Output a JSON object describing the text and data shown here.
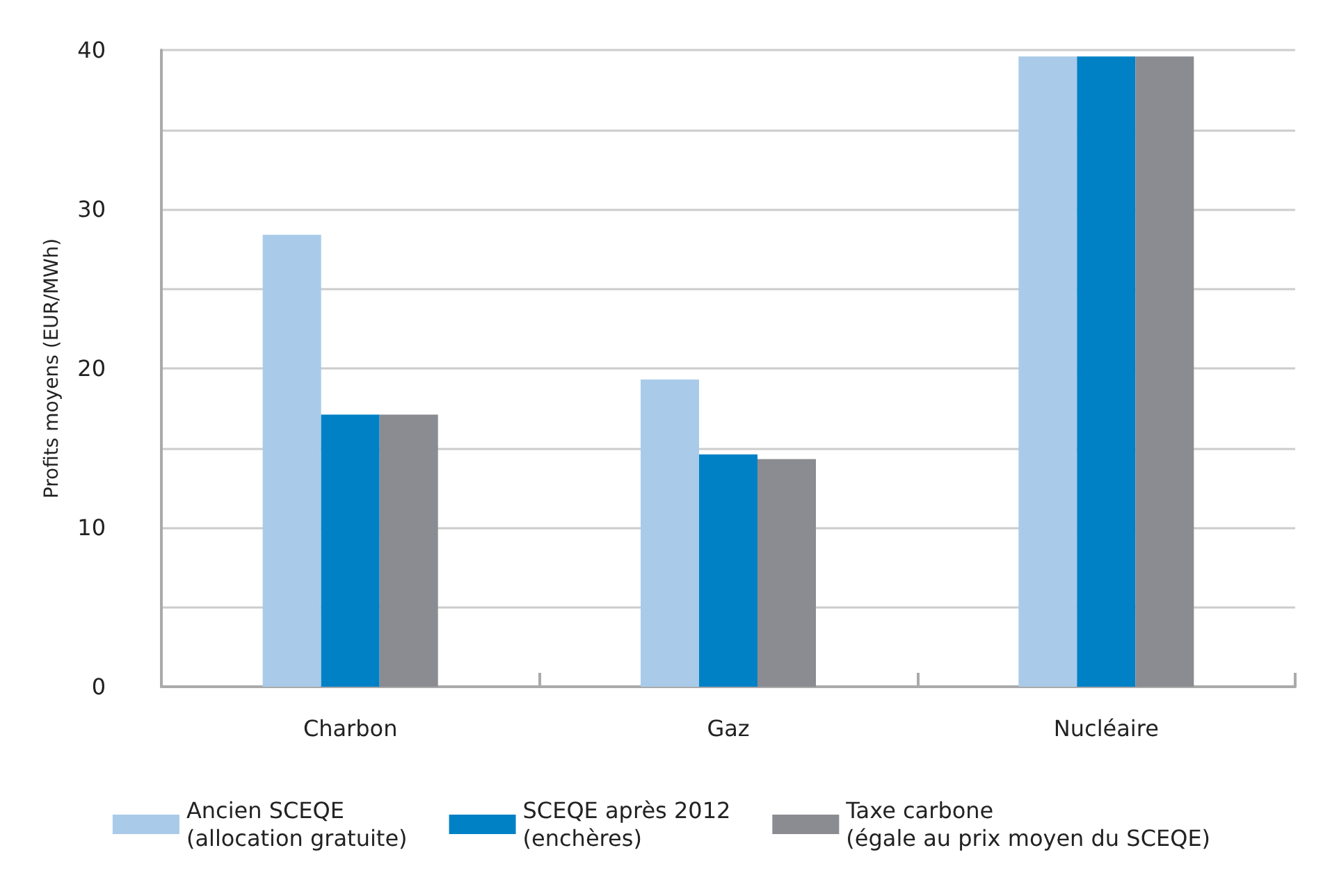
{
  "chart_data": {
    "type": "bar",
    "ylabel": "Profits moyens (EUR/MWh)",
    "categories": [
      "Charbon",
      "Gaz",
      "Nucléaire"
    ],
    "series": [
      {
        "name": "Ancien SCEQE\n(allocation gratuite)",
        "color": "#a9cbe9",
        "values": [
          28.4,
          19.3,
          39.6
        ]
      },
      {
        "name": "SCEQE après 2012\n(enchères)",
        "color": "#0081c6",
        "values": [
          17.1,
          14.6,
          39.6
        ]
      },
      {
        "name": "Taxe carbone\n(égale au prix moyen du SCEQE)",
        "color": "#8a8c91",
        "values": [
          17.1,
          14.3,
          39.6
        ]
      }
    ],
    "ylim": [
      0,
      40
    ],
    "yticks": [
      0,
      {
        "value": 5,
        "label": null
      },
      10,
      {
        "value": 15,
        "label": null
      },
      20,
      {
        "value": 25,
        "label": null
      },
      30,
      {
        "value": 35,
        "label": null
      },
      40
    ],
    "grid": "y",
    "legend": "bottom"
  }
}
